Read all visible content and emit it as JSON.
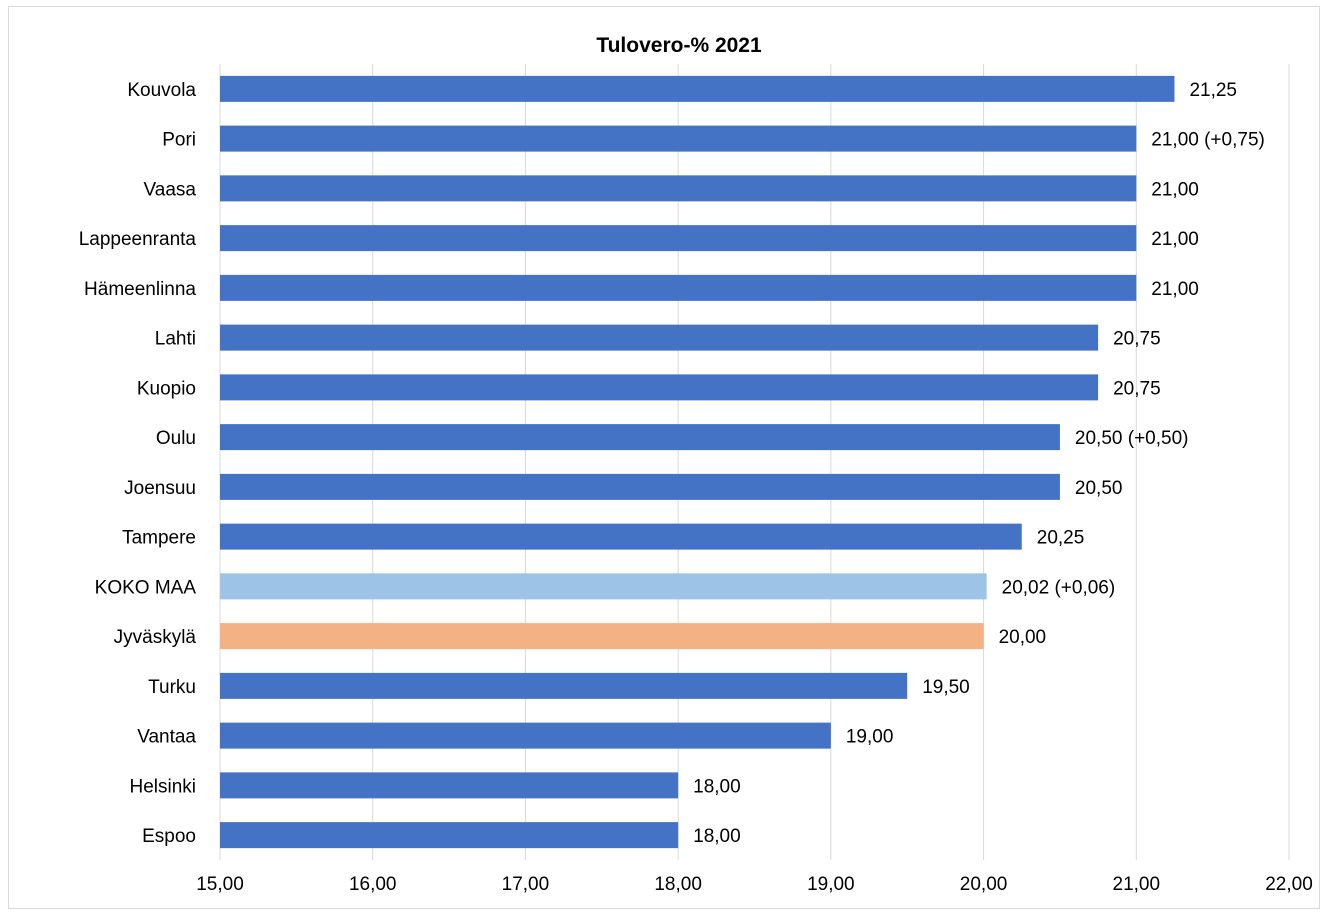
{
  "chart_data": {
    "type": "bar",
    "orientation": "horizontal",
    "title": "Tulovero-% 2021",
    "xlabel": "",
    "ylabel": "",
    "xlim": [
      15,
      22
    ],
    "x_ticks": [
      "15,00",
      "16,00",
      "17,00",
      "18,00",
      "19,00",
      "20,00",
      "21,00",
      "22,00"
    ],
    "grid": true,
    "legend": "none",
    "colors": {
      "default": "#4472c4",
      "koko_maa": "#9dc3e6",
      "jyvaskyla": "#f4b183"
    },
    "categories": [
      "Kouvola",
      "Pori",
      "Vaasa",
      "Lappeenranta",
      "Hämeenlinna",
      "Lahti",
      "Kuopio",
      "Oulu",
      "Joensuu",
      "Tampere",
      "KOKO MAA",
      "Jyväskylä",
      "Turku",
      "Vantaa",
      "Helsinki",
      "Espoo"
    ],
    "values": [
      21.25,
      21.0,
      21.0,
      21.0,
      21.0,
      20.75,
      20.75,
      20.5,
      20.5,
      20.25,
      20.02,
      20.0,
      19.5,
      19.0,
      18.0,
      18.0
    ],
    "data_labels": [
      "21,25",
      "21,00 (+0,75)",
      "21,00",
      "21,00",
      "21,00",
      "20,75",
      "20,75",
      "20,50 (+0,50)",
      "20,50",
      "20,25",
      "20,02 (+0,06)",
      "20,00",
      "19,50",
      "19,00",
      "18,00",
      "18,00"
    ],
    "bar_colors": [
      "#4472c4",
      "#4472c4",
      "#4472c4",
      "#4472c4",
      "#4472c4",
      "#4472c4",
      "#4472c4",
      "#4472c4",
      "#4472c4",
      "#4472c4",
      "#9dc3e6",
      "#f4b183",
      "#4472c4",
      "#4472c4",
      "#4472c4",
      "#4472c4"
    ]
  }
}
